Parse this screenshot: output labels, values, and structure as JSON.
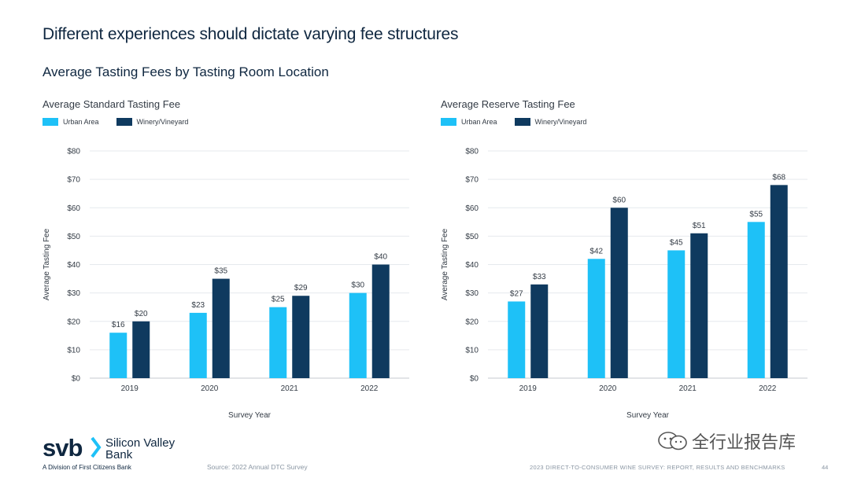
{
  "page": {
    "title": "Different experiences should dictate varying fee structures",
    "subtitle": "Average Tasting Fees by Tasting Room Location"
  },
  "colors": {
    "urban": "#1ec1f7",
    "winery": "#0f3a5f",
    "grid": "#e6e9ed",
    "axis": "#c4c9cf"
  },
  "chart_data": [
    {
      "type": "bar",
      "title": "Average Standard Tasting Fee",
      "categories": [
        "2019",
        "2020",
        "2021",
        "2022"
      ],
      "series": [
        {
          "name": "Urban Area",
          "values": [
            16,
            23,
            25,
            30
          ],
          "labels": [
            "$16",
            "$23",
            "$25",
            "$30"
          ]
        },
        {
          "name": "Winery/Vineyard",
          "values": [
            20,
            35,
            29,
            40
          ],
          "labels": [
            "$20",
            "$35",
            "$29",
            "$40"
          ]
        }
      ],
      "yticks": [
        "$0",
        "$10",
        "$20",
        "$30",
        "$40",
        "$50",
        "$60",
        "$70",
        "$80"
      ],
      "ylim": [
        0,
        80
      ],
      "xlabel": "Survey Year",
      "ylabel": "Average Tasting Fee",
      "legend": "top-left",
      "grid": true
    },
    {
      "type": "bar",
      "title": "Average Reserve Tasting Fee",
      "categories": [
        "2019",
        "2020",
        "2021",
        "2022"
      ],
      "series": [
        {
          "name": "Urban Area",
          "values": [
            27,
            42,
            45,
            55
          ],
          "labels": [
            "$27",
            "$42",
            "$45",
            "$55"
          ]
        },
        {
          "name": "Winery/Vineyard",
          "values": [
            33,
            60,
            51,
            68
          ],
          "labels": [
            "$33",
            "$60",
            "$51",
            "$68"
          ]
        }
      ],
      "yticks": [
        "$0",
        "$10",
        "$20",
        "$30",
        "$40",
        "$50",
        "$60",
        "$70",
        "$80"
      ],
      "ylim": [
        0,
        80
      ],
      "xlabel": "Survey Year",
      "ylabel": "Average Tasting Fee",
      "legend": "top-left",
      "grid": true
    }
  ],
  "footer": {
    "logo_word": "svb",
    "logo_name_line1": "Silicon Valley",
    "logo_name_line2": "Bank",
    "logo_division": "A Division of First Citizens Bank",
    "source": "Source: 2022 Annual DTC Survey",
    "watermark": "全行业报告库",
    "report": "2023 DIRECT-TO-CONSUMER WINE SURVEY: REPORT, RESULTS AND BENCHMARKS",
    "page_number": "44"
  }
}
